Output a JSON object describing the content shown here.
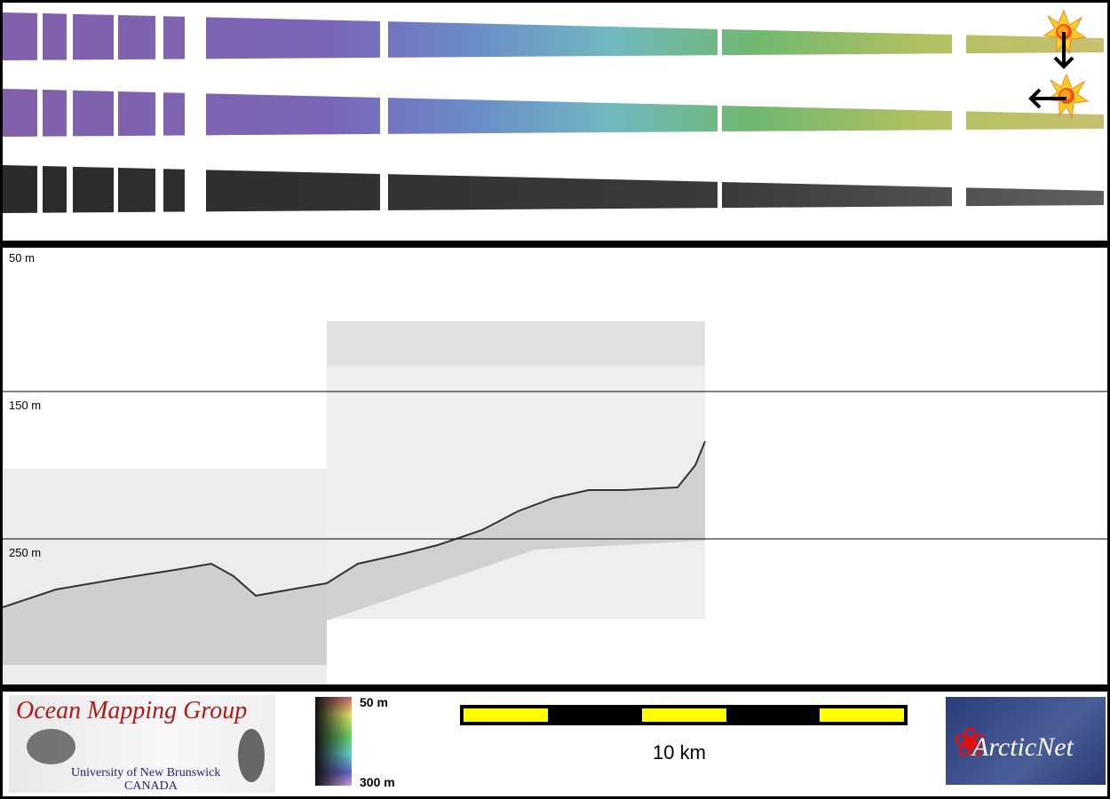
{
  "strips": [
    {
      "name": "sun-illuminated-from-north",
      "shading": "color",
      "sun_direction": "south"
    },
    {
      "name": "sun-illuminated-from-east",
      "shading": "color",
      "sun_direction": "west"
    },
    {
      "name": "backscatter",
      "shading": "grayscale"
    }
  ],
  "profile": {
    "depth_labels": [
      "50 m",
      "150 m",
      "250 m"
    ]
  },
  "colorbar": {
    "top_label": "50 m",
    "bottom_label": "300 m",
    "colors": [
      "#1a1a1a",
      "#c86464",
      "#e6e664",
      "#64d264",
      "#64d2d2",
      "#6464c8",
      "#d2a0e6"
    ]
  },
  "scalebar": {
    "label": "10 km",
    "colors": [
      "#000000",
      "#ffff00"
    ]
  },
  "logos": {
    "omg": {
      "title": "Ocean Mapping Group",
      "line1": "University of New Brunswick",
      "line2": "CANADA"
    },
    "arcticnet": {
      "text": "ArcticNet"
    }
  }
}
